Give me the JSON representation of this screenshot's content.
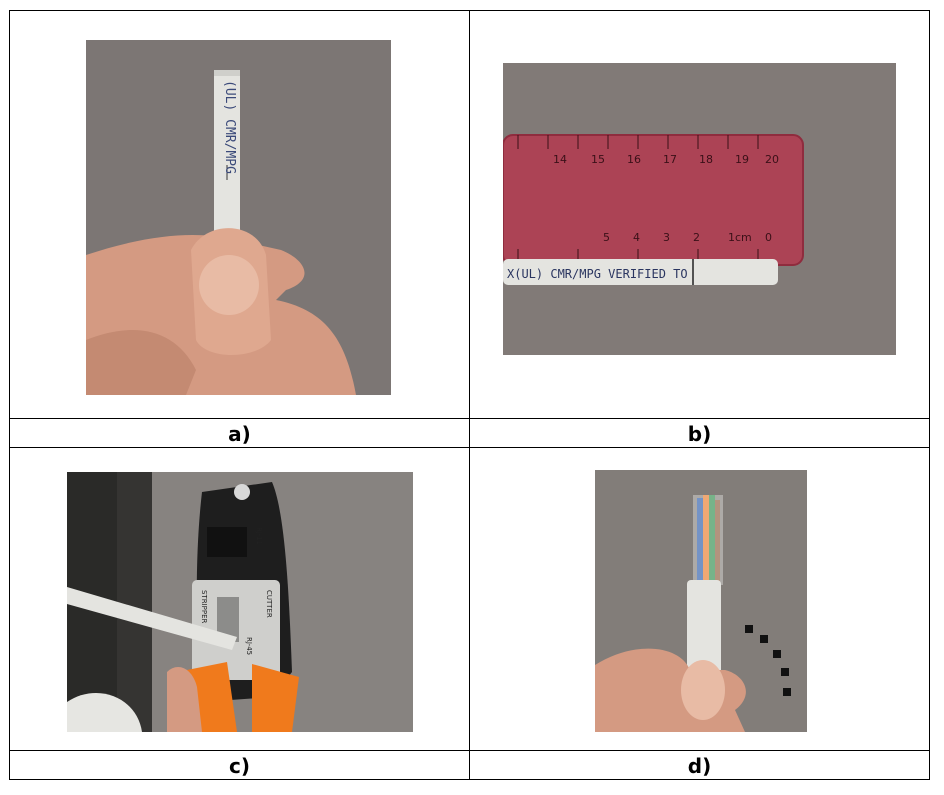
{
  "figure": {
    "panels": [
      {
        "caption": "a)",
        "image": "cable-end-held-in-fingers-photo"
      },
      {
        "caption": "b)",
        "image": "cable-measured-with-ruler-photo"
      },
      {
        "caption": "c)",
        "image": "cable-in-crimping-tool-photo"
      },
      {
        "caption": "d)",
        "image": "stripped-cable-twisted-pairs-photo"
      }
    ]
  },
  "photo_text": {
    "cable_print_a": "(UL) CMR/MPG",
    "cable_print_b": "X(UL) CMR/MPG VERIFIED TO",
    "ruler_marks_top": [
      "14",
      "15",
      "16",
      "17",
      "18",
      "19",
      "20"
    ],
    "ruler_marks_bottom": [
      "5",
      "4",
      "3",
      "2",
      "1cm",
      "0"
    ],
    "tool_labels": [
      "STRIPPER",
      "CUTTER",
      "RJ-45",
      "RJ-11"
    ]
  },
  "colors": {
    "fabric": "#807a78",
    "cable_jacket": "#e4e4e0",
    "ruler": "#b03e52",
    "tool_handle": "#f07a1c",
    "tool_body": "#1e1e1e",
    "skin": "#d49a82"
  }
}
